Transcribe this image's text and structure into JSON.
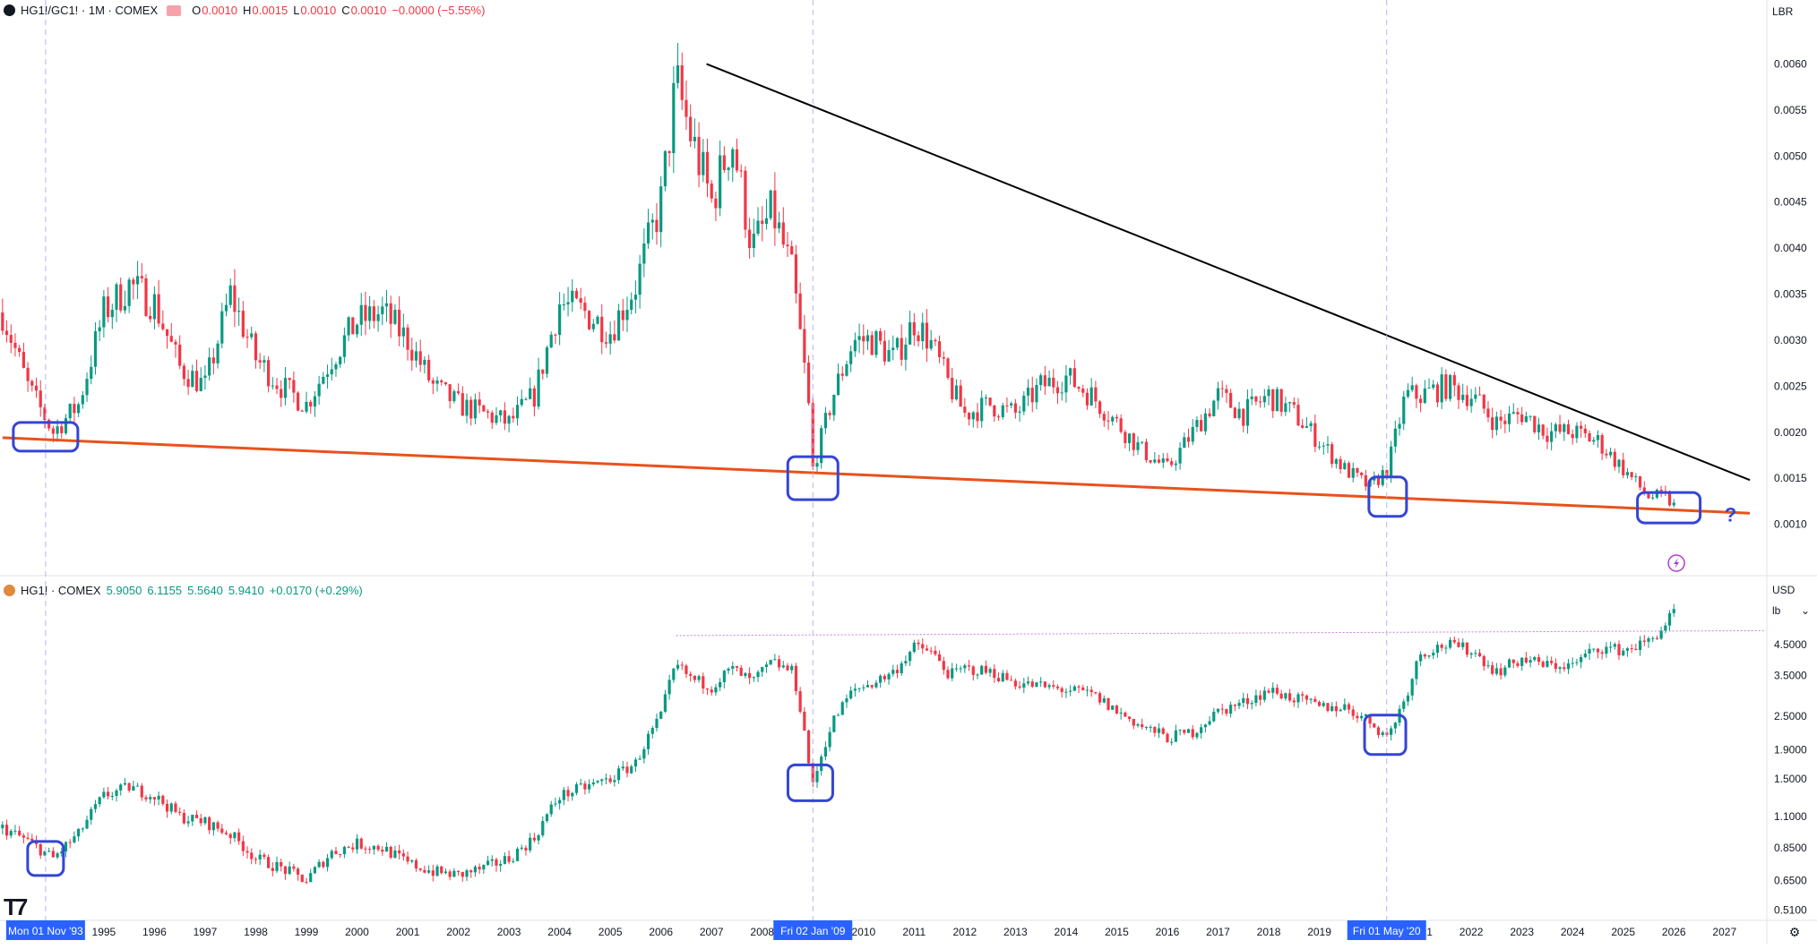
{
  "top_pane": {
    "symbol": "HG1!/GC1! · 1M · COMEX",
    "ohlc": [
      {
        "key": "O",
        "value": "0.0010"
      },
      {
        "key": "H",
        "value": "0.0015"
      },
      {
        "key": "L",
        "value": "0.0010"
      },
      {
        "key": "C",
        "value": "0.0010"
      }
    ],
    "change": "−0.0000 (−5.55%)",
    "scale_unit": "LBR",
    "ticks": [
      "0.0060",
      "0.0055",
      "0.0050",
      "0.0045",
      "0.0040",
      "0.0035",
      "0.0030",
      "0.0025",
      "0.0020",
      "0.0015",
      "0.0010"
    ],
    "question_mark": "?",
    "colors": {
      "up": "#089981",
      "down": "#f23645",
      "resistance": "#000000",
      "support": "#e8521c",
      "box": "#3445d4",
      "annotation": "#3445d4"
    }
  },
  "bottom_pane": {
    "symbol": "HG1! · COMEX",
    "ohlc": [
      "5.9050",
      "6.1155",
      "5.5640",
      "5.9410"
    ],
    "change": "+0.0170 (+0.29%)",
    "currency": "USD",
    "unit": "lb",
    "ticks": [
      "4.5000",
      "3.5000",
      "2.5000",
      "1.9000",
      "1.5000",
      "1.1000",
      "0.8500",
      "0.6500",
      "0.5100"
    ],
    "colors": {
      "up": "#089981",
      "down": "#f23645",
      "dotted_line": "#c77dd6",
      "box": "#3445d4"
    }
  },
  "time_axis": {
    "years": [
      "1995",
      "1996",
      "1997",
      "1998",
      "1999",
      "2000",
      "2001",
      "2002",
      "2003",
      "2004",
      "2005",
      "2006",
      "2007",
      "2008",
      "2010",
      "2011",
      "2012",
      "2013",
      "2014",
      "2015",
      "2016",
      "2017",
      "2018",
      "2019",
      "2021",
      "2022",
      "2023",
      "2024",
      "2025",
      "2026",
      "2027"
    ],
    "crosshair_labels": [
      "Mon 01 Nov '93",
      "Fri 02 Jan '09",
      "Fri 01 May '20"
    ],
    "crosshair_color": "#2962ff"
  },
  "chart_data": [
    {
      "type": "candlestick",
      "title": "HG1!/GC1! · 1M · COMEX",
      "ylim": [
        0.0005,
        0.0065
      ],
      "x": [
        1993.0,
        1993.5,
        1994.0,
        1994.5,
        1995.0,
        1995.5,
        1996.0,
        1996.5,
        1997.0,
        1997.5,
        1998.0,
        1998.5,
        1999.0,
        1999.5,
        2000.0,
        2000.5,
        2001.0,
        2001.5,
        2002.0,
        2002.5,
        2003.0,
        2003.5,
        2004.0,
        2004.5,
        2005.0,
        2005.5,
        2006.0,
        2006.3,
        2006.6,
        2007.0,
        2007.4,
        2007.8,
        2008.2,
        2008.6,
        2008.9,
        2009.0,
        2009.4,
        2009.8,
        2010.2,
        2010.6,
        2011.0,
        2011.3,
        2011.7,
        2012.0,
        2012.5,
        2013.0,
        2013.5,
        2014.0,
        2014.5,
        2015.0,
        2015.5,
        2016.0,
        2016.5,
        2017.0,
        2017.5,
        2018.0,
        2018.5,
        2019.0,
        2019.5,
        2020.0,
        2020.35,
        2020.7,
        2021.0,
        2021.5,
        2022.0,
        2022.5,
        2023.0,
        2023.5,
        2024.0,
        2024.5,
        2025.0,
        2025.5,
        2025.8,
        2026.0
      ],
      "values": [
        0.0033,
        0.0025,
        0.002,
        0.0023,
        0.0033,
        0.0036,
        0.0034,
        0.0027,
        0.0025,
        0.0035,
        0.0028,
        0.0025,
        0.0023,
        0.0028,
        0.0032,
        0.0033,
        0.003,
        0.0025,
        0.0023,
        0.0022,
        0.0021,
        0.0024,
        0.0034,
        0.0033,
        0.0031,
        0.0036,
        0.0045,
        0.0058,
        0.0052,
        0.0045,
        0.0052,
        0.004,
        0.0044,
        0.0037,
        0.0024,
        0.0016,
        0.0024,
        0.003,
        0.003,
        0.0028,
        0.0032,
        0.003,
        0.0025,
        0.0022,
        0.0023,
        0.0022,
        0.0025,
        0.0026,
        0.0024,
        0.0021,
        0.0018,
        0.0016,
        0.002,
        0.0024,
        0.0022,
        0.0024,
        0.0022,
        0.0019,
        0.0016,
        0.0014,
        0.0016,
        0.0024,
        0.0024,
        0.0025,
        0.0024,
        0.0021,
        0.0022,
        0.002,
        0.002,
        0.0019,
        0.0016,
        0.0013,
        0.0013,
        0.0012
      ],
      "trendlines": [
        {
          "name": "",
          "from": [
            "2006.9",
            0.006
          ],
          "to": [
            "2027.5",
            0.00148
          ]
        },
        {
          "name": "",
          "from": [
            "1993.0",
            0.00194
          ],
          "to": [
            "2027.5",
            0.00112
          ]
        }
      ]
    },
    {
      "type": "candlestick",
      "title": "HG1! · COMEX",
      "yscale": "log",
      "ylim": [
        0.48,
        6.5
      ],
      "x": [
        1993.0,
        1993.5,
        1994.0,
        1994.5,
        1995.0,
        1995.5,
        1996.0,
        1996.5,
        1997.0,
        1997.5,
        1998.0,
        1998.5,
        1999.0,
        1999.5,
        2000.0,
        2000.5,
        2001.0,
        2001.5,
        2002.0,
        2002.5,
        2003.0,
        2003.5,
        2004.0,
        2004.5,
        2005.0,
        2005.5,
        2006.0,
        2006.3,
        2006.6,
        2007.0,
        2007.4,
        2007.8,
        2008.2,
        2008.6,
        2008.9,
        2009.0,
        2009.4,
        2009.8,
        2010.2,
        2010.6,
        2011.0,
        2011.3,
        2011.7,
        2012.0,
        2012.5,
        2013.0,
        2013.5,
        2014.0,
        2014.5,
        2015.0,
        2015.5,
        2016.0,
        2016.5,
        2017.0,
        2017.5,
        2018.0,
        2018.5,
        2019.0,
        2019.5,
        2020.0,
        2020.35,
        2020.7,
        2021.0,
        2021.5,
        2022.0,
        2022.5,
        2023.0,
        2023.5,
        2024.0,
        2024.5,
        2025.0,
        2025.5,
        2025.8,
        2026.0
      ],
      "values": [
        1.0,
        0.9,
        0.78,
        0.95,
        1.3,
        1.4,
        1.3,
        1.1,
        1.05,
        0.95,
        0.78,
        0.72,
        0.65,
        0.82,
        0.88,
        0.85,
        0.75,
        0.7,
        0.68,
        0.72,
        0.78,
        0.92,
        1.3,
        1.4,
        1.5,
        1.7,
        2.5,
        3.8,
        3.4,
        3.2,
        3.7,
        3.3,
        3.9,
        3.6,
        1.8,
        1.4,
        2.4,
        3.1,
        3.3,
        3.6,
        4.4,
        4.3,
        3.5,
        3.7,
        3.6,
        3.3,
        3.2,
        3.1,
        3.0,
        2.6,
        2.3,
        2.1,
        2.2,
        2.6,
        2.8,
        3.1,
        2.9,
        2.7,
        2.7,
        2.4,
        2.1,
        2.9,
        4.2,
        4.5,
        4.3,
        3.6,
        4.0,
        3.8,
        3.8,
        4.4,
        4.3,
        4.6,
        5.2,
        5.9
      ]
    }
  ]
}
